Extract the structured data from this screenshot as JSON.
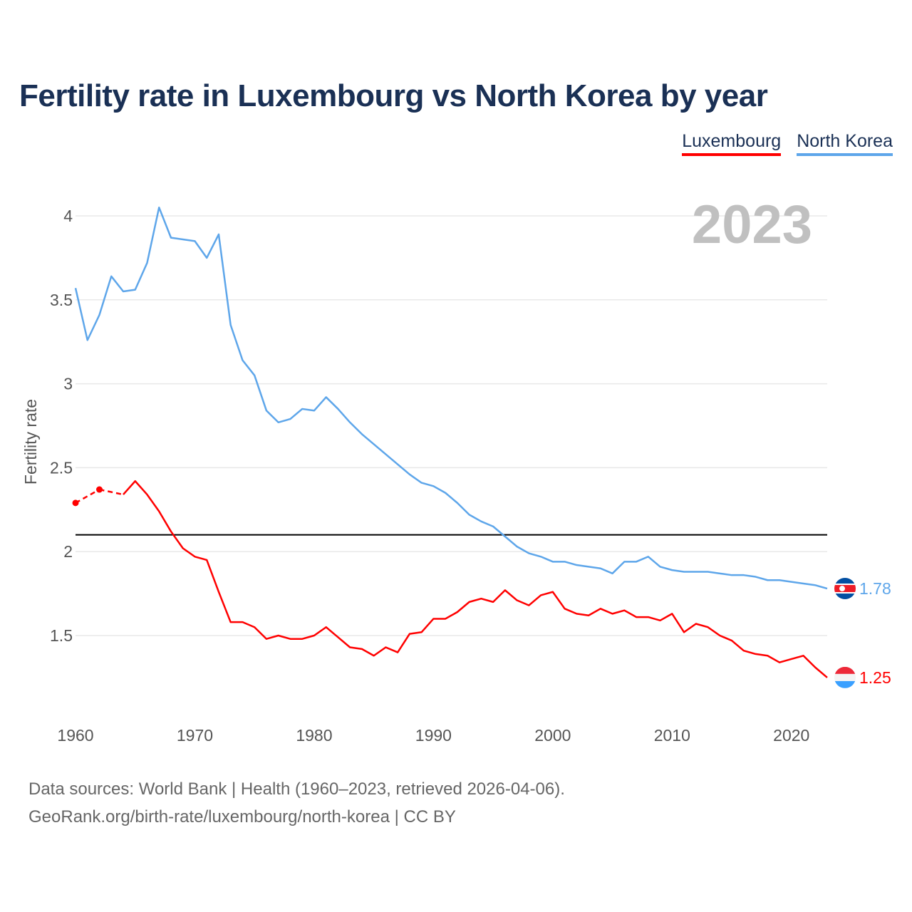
{
  "title": "Fertility rate in Luxembourg vs North Korea by year",
  "source_line1": "Data sources: World Bank | Health (1960–2023, retrieved 2026-04-06).",
  "source_line2": "GeoRank.org/birth-rate/luxembourg/north-korea | CC BY",
  "chart_data": {
    "type": "line",
    "title": "Fertility rate in Luxembourg vs North Korea by year",
    "ylabel": "Fertility rate",
    "xlabel": "",
    "year_label": "2023",
    "xlim": [
      1960,
      2023
    ],
    "ylim": [
      1.05,
      4.2
    ],
    "xticks": [
      "1960",
      "1970",
      "1980",
      "1990",
      "2000",
      "2010",
      "2020"
    ],
    "yticks": [
      "1.5",
      "2",
      "2.5",
      "3",
      "3.5",
      "4"
    ],
    "reference_line": 2.1,
    "legend_position": "top-right",
    "x": [
      1960,
      1961,
      1962,
      1963,
      1964,
      1965,
      1966,
      1967,
      1968,
      1969,
      1970,
      1971,
      1972,
      1973,
      1974,
      1975,
      1976,
      1977,
      1978,
      1979,
      1980,
      1981,
      1982,
      1983,
      1984,
      1985,
      1986,
      1987,
      1988,
      1989,
      1990,
      1991,
      1992,
      1993,
      1994,
      1995,
      1996,
      1997,
      1998,
      1999,
      2000,
      2001,
      2002,
      2003,
      2004,
      2005,
      2006,
      2007,
      2008,
      2009,
      2010,
      2011,
      2012,
      2013,
      2014,
      2015,
      2016,
      2017,
      2018,
      2019,
      2020,
      2021,
      2022,
      2023
    ],
    "series": [
      {
        "name": "Luxembourg",
        "color": "#ff0000",
        "end_label": "1.25",
        "values": [
          2.29,
          null,
          2.37,
          null,
          2.34,
          2.42,
          2.34,
          2.24,
          2.12,
          2.02,
          1.97,
          1.95,
          1.76,
          1.58,
          1.58,
          1.55,
          1.48,
          1.5,
          1.48,
          1.48,
          1.5,
          1.55,
          1.49,
          1.43,
          1.42,
          1.38,
          1.43,
          1.4,
          1.51,
          1.52,
          1.6,
          1.6,
          1.64,
          1.7,
          1.72,
          1.7,
          1.77,
          1.71,
          1.68,
          1.74,
          1.76,
          1.66,
          1.63,
          1.62,
          1.66,
          1.63,
          1.65,
          1.61,
          1.61,
          1.59,
          1.63,
          1.52,
          1.57,
          1.55,
          1.5,
          1.47,
          1.41,
          1.39,
          1.38,
          1.34,
          1.36,
          1.38,
          1.31,
          1.25
        ]
      },
      {
        "name": "North Korea",
        "color": "#5ea6ea",
        "end_label": "1.78",
        "values": [
          3.57,
          3.26,
          3.41,
          3.64,
          3.55,
          3.56,
          3.72,
          4.05,
          3.87,
          3.86,
          3.85,
          3.75,
          3.89,
          3.35,
          3.14,
          3.05,
          2.84,
          2.77,
          2.79,
          2.85,
          2.84,
          2.92,
          2.85,
          2.77,
          2.7,
          2.64,
          2.58,
          2.52,
          2.46,
          2.41,
          2.39,
          2.35,
          2.29,
          2.22,
          2.18,
          2.15,
          2.09,
          2.03,
          1.99,
          1.97,
          1.94,
          1.94,
          1.92,
          1.91,
          1.9,
          1.87,
          1.94,
          1.94,
          1.97,
          1.91,
          1.89,
          1.88,
          1.88,
          1.88,
          1.87,
          1.86,
          1.86,
          1.85,
          1.83,
          1.83,
          1.82,
          1.81,
          1.8,
          1.78
        ]
      }
    ]
  }
}
